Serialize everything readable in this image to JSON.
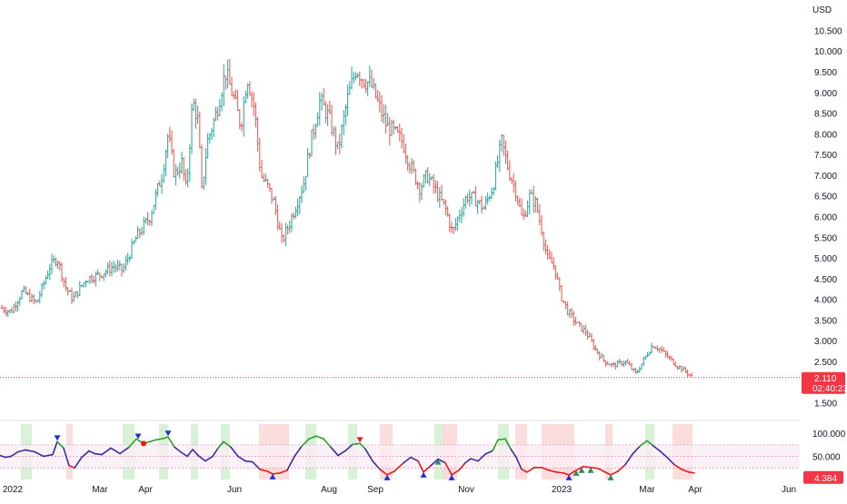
{
  "colors": {
    "up": "#26a69a",
    "down": "#ef5350",
    "osc_up": "#2e9e2e",
    "osc_down": "#e21b1b",
    "osc_neutral": "#3b2f9e",
    "last_price_bg": "#f23645",
    "axis_text": "#131722",
    "zone_green": "#c8ecc8",
    "zone_red": "#fbd5d5",
    "band_fill": "#fbeef4",
    "band_line": "#e29ac0",
    "marker_blue": "#1e2fd6",
    "marker_red": "#e21b1b",
    "marker_green": "#2e8b57"
  },
  "chart_data": [
    {
      "type": "candlestick",
      "currency_label": "USD",
      "y_ticks": [
        "10.500",
        "10.000",
        "9.500",
        "9.000",
        "8.500",
        "8.000",
        "7.500",
        "7.000",
        "6.500",
        "6.000",
        "5.500",
        "5.000",
        "4.500",
        "4.000",
        "3.500",
        "3.000",
        "2.500",
        "1.500"
      ],
      "ylim": [
        1.25,
        10.75
      ],
      "x_ticks": [
        "2022",
        "Mar",
        "Apr",
        "Jun",
        "Aug",
        "Sep",
        "Nov",
        "2023",
        "Mar",
        "Apr",
        "Jun"
      ],
      "last_price": "2.110",
      "countdown": "02:40:23",
      "path_points": [
        [
          0,
          3.8
        ],
        [
          12,
          3.7
        ],
        [
          25,
          4.2
        ],
        [
          40,
          3.9
        ],
        [
          55,
          4.8
        ],
        [
          63,
          5.0
        ],
        [
          72,
          4.3
        ],
        [
          80,
          4.0
        ],
        [
          95,
          4.5
        ],
        [
          110,
          4.6
        ],
        [
          125,
          4.8
        ],
        [
          135,
          4.7
        ],
        [
          150,
          5.5
        ],
        [
          165,
          6.0
        ],
        [
          178,
          7.0
        ],
        [
          185,
          8.0
        ],
        [
          192,
          7.0
        ],
        [
          200,
          7.3
        ],
        [
          205,
          6.6
        ],
        [
          212,
          8.8
        ],
        [
          218,
          8.3
        ],
        [
          222,
          6.6
        ],
        [
          228,
          7.8
        ],
        [
          238,
          8.5
        ],
        [
          248,
          9.5
        ],
        [
          258,
          8.8
        ],
        [
          265,
          8.2
        ],
        [
          272,
          9.4
        ],
        [
          280,
          8.6
        ],
        [
          287,
          7.0
        ],
        [
          295,
          6.7
        ],
        [
          302,
          6.3
        ],
        [
          310,
          5.4
        ],
        [
          318,
          5.8
        ],
        [
          326,
          6.3
        ],
        [
          334,
          6.8
        ],
        [
          342,
          7.8
        ],
        [
          352,
          8.8
        ],
        [
          362,
          8.4
        ],
        [
          372,
          7.6
        ],
        [
          382,
          8.8
        ],
        [
          392,
          9.6
        ],
        [
          400,
          9.3
        ],
        [
          408,
          9.2
        ],
        [
          415,
          8.8
        ],
        [
          425,
          8.2
        ],
        [
          435,
          8.0
        ],
        [
          443,
          7.8
        ],
        [
          452,
          7.2
        ],
        [
          462,
          6.7
        ],
        [
          470,
          7.0
        ],
        [
          480,
          6.6
        ],
        [
          490,
          6.2
        ],
        [
          498,
          5.6
        ],
        [
          506,
          6.1
        ],
        [
          514,
          6.5
        ],
        [
          524,
          6.4
        ],
        [
          532,
          6.2
        ],
        [
          542,
          6.7
        ],
        [
          552,
          7.8
        ],
        [
          560,
          7.1
        ],
        [
          568,
          6.6
        ],
        [
          575,
          5.9
        ],
        [
          583,
          6.5
        ],
        [
          590,
          6.3
        ],
        [
          596,
          5.7
        ],
        [
          602,
          5.0
        ],
        [
          610,
          4.8
        ],
        [
          617,
          4.1
        ],
        [
          625,
          3.7
        ],
        [
          635,
          3.4
        ],
        [
          645,
          3.2
        ],
        [
          655,
          2.8
        ],
        [
          665,
          2.5
        ],
        [
          675,
          2.4
        ],
        [
          688,
          2.5
        ],
        [
          700,
          2.2
        ],
        [
          710,
          2.6
        ],
        [
          718,
          2.9
        ],
        [
          726,
          2.8
        ],
        [
          735,
          2.6
        ],
        [
          745,
          2.4
        ],
        [
          755,
          2.25
        ],
        [
          762,
          2.11
        ]
      ]
    },
    {
      "type": "line",
      "y_ticks": [
        "100.000",
        "50.000"
      ],
      "ylim": [
        0,
        120
      ],
      "last_value": "4.384",
      "upper_band": 75,
      "mid_band": 50,
      "lower_band": 25,
      "osc_points": [
        [
          0,
          52
        ],
        [
          6,
          48
        ],
        [
          12,
          50
        ],
        [
          20,
          60
        ],
        [
          28,
          64
        ],
        [
          38,
          60
        ],
        [
          48,
          50
        ],
        [
          58,
          54
        ],
        [
          63,
          82
        ],
        [
          70,
          68
        ],
        [
          76,
          30
        ],
        [
          82,
          25
        ],
        [
          90,
          48
        ],
        [
          98,
          62
        ],
        [
          104,
          56
        ],
        [
          112,
          54
        ],
        [
          122,
          68
        ],
        [
          132,
          56
        ],
        [
          142,
          70
        ],
        [
          150,
          88
        ],
        [
          158,
          78
        ],
        [
          165,
          82
        ],
        [
          172,
          86
        ],
        [
          178,
          88
        ],
        [
          185,
          92
        ],
        [
          192,
          70
        ],
        [
          200,
          58
        ],
        [
          206,
          50
        ],
        [
          212,
          65
        ],
        [
          218,
          52
        ],
        [
          226,
          40
        ],
        [
          234,
          50
        ],
        [
          240,
          68
        ],
        [
          246,
          82
        ],
        [
          254,
          70
        ],
        [
          262,
          50
        ],
        [
          270,
          40
        ],
        [
          278,
          38
        ],
        [
          286,
          22
        ],
        [
          294,
          18
        ],
        [
          300,
          12
        ],
        [
          308,
          14
        ],
        [
          316,
          20
        ],
        [
          324,
          50
        ],
        [
          332,
          72
        ],
        [
          340,
          88
        ],
        [
          348,
          94
        ],
        [
          356,
          88
        ],
        [
          364,
          70
        ],
        [
          372,
          52
        ],
        [
          380,
          62
        ],
        [
          388,
          76
        ],
        [
          396,
          78
        ],
        [
          402,
          66
        ],
        [
          410,
          40
        ],
        [
          418,
          22
        ],
        [
          426,
          10
        ],
        [
          434,
          18
        ],
        [
          444,
          36
        ],
        [
          452,
          48
        ],
        [
          460,
          40
        ],
        [
          466,
          16
        ],
        [
          474,
          30
        ],
        [
          482,
          44
        ],
        [
          490,
          36
        ],
        [
          497,
          10
        ],
        [
          505,
          20
        ],
        [
          512,
          36
        ],
        [
          518,
          45
        ],
        [
          526,
          40
        ],
        [
          534,
          55
        ],
        [
          542,
          62
        ],
        [
          548,
          86
        ],
        [
          556,
          88
        ],
        [
          562,
          66
        ],
        [
          568,
          48
        ],
        [
          574,
          22
        ],
        [
          580,
          16
        ],
        [
          588,
          26
        ],
        [
          596,
          26
        ],
        [
          604,
          20
        ],
        [
          612,
          16
        ],
        [
          620,
          14
        ],
        [
          626,
          10
        ],
        [
          634,
          20
        ],
        [
          642,
          28
        ],
        [
          650,
          26
        ],
        [
          658,
          24
        ],
        [
          666,
          16
        ],
        [
          672,
          10
        ],
        [
          680,
          18
        ],
        [
          688,
          32
        ],
        [
          696,
          55
        ],
        [
          704,
          72
        ],
        [
          712,
          84
        ],
        [
          718,
          74
        ],
        [
          726,
          62
        ],
        [
          734,
          48
        ],
        [
          742,
          32
        ],
        [
          750,
          22
        ],
        [
          758,
          16
        ],
        [
          764,
          14
        ]
      ],
      "zones_green": [
        [
          23,
          35
        ],
        [
          135,
          148
        ],
        [
          175,
          185
        ],
        [
          210,
          218
        ],
        [
          243,
          253
        ],
        [
          336,
          348
        ],
        [
          383,
          393
        ],
        [
          478,
          490
        ],
        [
          548,
          560
        ],
        [
          710,
          720
        ]
      ],
      "zones_red": [
        [
          73,
          80
        ],
        [
          285,
          318
        ],
        [
          418,
          432
        ],
        [
          487,
          503
        ],
        [
          567,
          580
        ],
        [
          596,
          632
        ],
        [
          666,
          674
        ],
        [
          740,
          762
        ]
      ],
      "markers": [
        {
          "x": 63,
          "kind": "down",
          "color": "#1e2fd6"
        },
        {
          "x": 152,
          "kind": "down",
          "color": "#1e2fd6"
        },
        {
          "x": 158,
          "kind": "dot",
          "color": "#e21b1b"
        },
        {
          "x": 185,
          "kind": "down",
          "color": "#1e2fd6"
        },
        {
          "x": 396,
          "kind": "down",
          "color": "#e21b1b"
        },
        {
          "x": 300,
          "kind": "up",
          "color": "#1e2fd6"
        },
        {
          "x": 426,
          "kind": "up",
          "color": "#1e2fd6"
        },
        {
          "x": 466,
          "kind": "up",
          "color": "#1e2fd6"
        },
        {
          "x": 497,
          "kind": "up",
          "color": "#1e2fd6"
        },
        {
          "x": 482,
          "kind": "up",
          "color": "#2e8b57"
        },
        {
          "x": 626,
          "kind": "up",
          "color": "#1e2fd6"
        },
        {
          "x": 634,
          "kind": "up",
          "color": "#2e8b57"
        },
        {
          "x": 640,
          "kind": "up",
          "color": "#2e8b57"
        },
        {
          "x": 650,
          "kind": "up",
          "color": "#2e8b57"
        },
        {
          "x": 672,
          "kind": "up",
          "color": "#2e8b57"
        }
      ]
    }
  ]
}
